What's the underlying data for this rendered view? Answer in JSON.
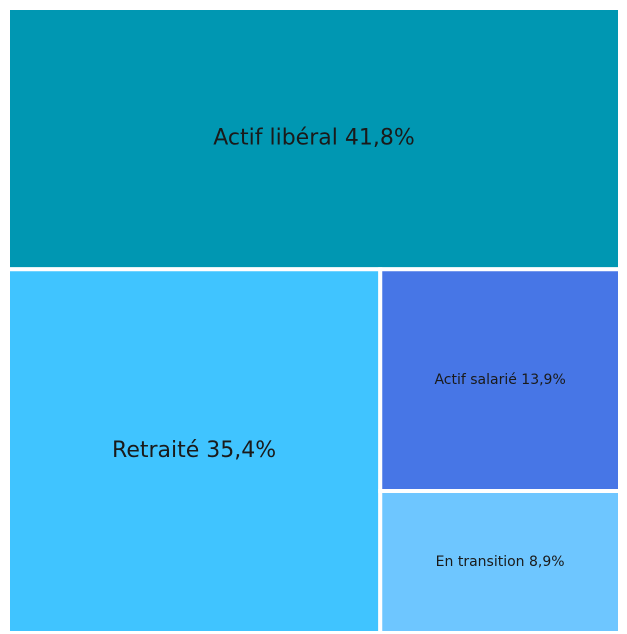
{
  "chart_data": {
    "type": "treemap",
    "categories": [
      "Actif libéral",
      "Retraité",
      "Actif salarié",
      "En transition"
    ],
    "values": [
      41.8,
      35.4,
      13.9,
      8.9
    ],
    "value_labels": [
      "41,8%",
      "35,4%",
      "13,9%",
      "8,9%"
    ],
    "colors": [
      "#0097b2",
      "#40c4ff",
      "#4776e6",
      "#6ec6ff"
    ]
  }
}
